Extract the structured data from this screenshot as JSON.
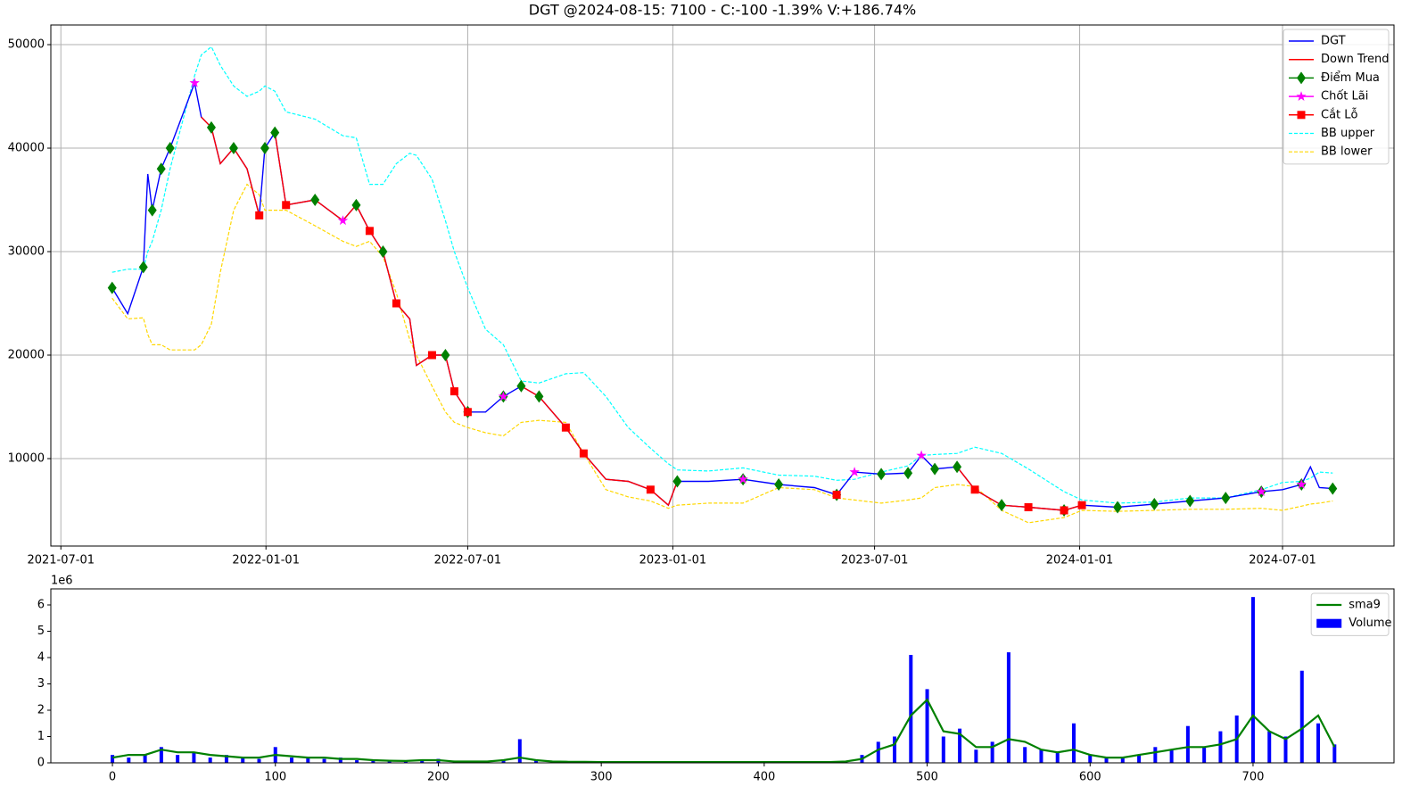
{
  "chart_data": [
    {
      "type": "line",
      "title": "DGT @2024-08-15: 7100 - C:-100 -1.39% V:+186.74%",
      "x": [
        "2021-08-16",
        "2021-08-30",
        "2021-09-13",
        "2021-09-17",
        "2021-09-21",
        "2021-09-29",
        "2021-10-07",
        "2021-10-29",
        "2021-11-04",
        "2021-11-13",
        "2021-11-21",
        "2021-12-03",
        "2021-12-15",
        "2021-12-26",
        "2021-12-31",
        "2022-01-09",
        "2022-01-19",
        "2022-02-14",
        "2022-03-11",
        "2022-03-23",
        "2022-04-04",
        "2022-04-16",
        "2022-04-28",
        "2022-05-10",
        "2022-05-16",
        "2022-05-30",
        "2022-06-11",
        "2022-06-19",
        "2022-07-01",
        "2022-07-17",
        "2022-08-02",
        "2022-08-18",
        "2022-09-03",
        "2022-09-27",
        "2022-10-13",
        "2022-11-02",
        "2022-11-22",
        "2022-12-12",
        "2022-12-28",
        "2023-01-05",
        "2023-02-02",
        "2023-03-05",
        "2023-04-06",
        "2023-05-08",
        "2023-05-28",
        "2023-06-13",
        "2023-07-07",
        "2023-07-31",
        "2023-08-12",
        "2023-08-24",
        "2023-09-13",
        "2023-09-29",
        "2023-10-23",
        "2023-11-16",
        "2023-12-18",
        "2024-01-03",
        "2024-02-04",
        "2024-03-08",
        "2024-04-09",
        "2024-05-11",
        "2024-06-12",
        "2024-07-01",
        "2024-07-18",
        "2024-07-26",
        "2024-08-03",
        "2024-08-15"
      ],
      "series": [
        {
          "name": "DGT",
          "color": "#0000ff",
          "kind": "line",
          "values": [
            26500,
            24000,
            28500,
            37500,
            34000,
            38000,
            40000,
            46300,
            43000,
            42000,
            38500,
            40000,
            38000,
            33500,
            40000,
            41500,
            34500,
            35000,
            33000,
            34500,
            32000,
            30000,
            25000,
            23500,
            19000,
            20000,
            20000,
            16500,
            14500,
            14500,
            16000,
            17000,
            16000,
            13000,
            10500,
            8000,
            7800,
            7000,
            5500,
            7800,
            7800,
            8000,
            7500,
            7200,
            6500,
            8700,
            8500,
            8600,
            10300,
            9000,
            9200,
            7000,
            5500,
            5300,
            5000,
            5500,
            5300,
            5600,
            5900,
            6200,
            6800,
            7000,
            7500,
            9200,
            7200,
            7100
          ]
        },
        {
          "name": "Down Trend",
          "color": "#ff0000",
          "kind": "line",
          "values": [
            null,
            null,
            null,
            null,
            null,
            null,
            null,
            null,
            43000,
            42000,
            38500,
            40000,
            38000,
            33500,
            null,
            41500,
            34500,
            35000,
            33000,
            34500,
            32000,
            30000,
            25000,
            23500,
            19000,
            20000,
            20000,
            16500,
            14500,
            null,
            null,
            17000,
            16000,
            13000,
            10500,
            8000,
            7800,
            7000,
            5500,
            7800,
            null,
            null,
            null,
            null,
            null,
            null,
            null,
            null,
            null,
            null,
            9200,
            7000,
            5500,
            5300,
            5000,
            5500,
            null,
            null,
            null,
            null,
            null,
            null,
            null,
            null,
            null,
            null
          ]
        },
        {
          "name": "Điểm Mua",
          "color": "#008000",
          "kind": "diamond",
          "values": [
            26500,
            null,
            28500,
            null,
            34000,
            38000,
            40000,
            null,
            null,
            42000,
            null,
            40000,
            null,
            null,
            40000,
            41500,
            null,
            35000,
            null,
            34500,
            null,
            30000,
            null,
            null,
            null,
            null,
            20000,
            null,
            14500,
            null,
            16000,
            17000,
            16000,
            null,
            null,
            null,
            null,
            null,
            null,
            7800,
            null,
            8000,
            7500,
            null,
            6500,
            null,
            8500,
            8600,
            null,
            9000,
            9200,
            null,
            5500,
            null,
            5000,
            null,
            5300,
            5600,
            5900,
            6200,
            6800,
            null,
            7500,
            null,
            null,
            7100
          ]
        },
        {
          "name": "Chốt Lãi",
          "color": "#ff00ff",
          "kind": "star",
          "values": [
            null,
            null,
            null,
            null,
            null,
            null,
            null,
            46300,
            null,
            null,
            null,
            null,
            null,
            null,
            null,
            null,
            null,
            null,
            33000,
            null,
            null,
            null,
            null,
            null,
            null,
            null,
            null,
            null,
            null,
            null,
            16000,
            null,
            null,
            null,
            null,
            null,
            null,
            null,
            null,
            null,
            null,
            8000,
            null,
            null,
            null,
            8700,
            null,
            null,
            10300,
            null,
            null,
            null,
            null,
            null,
            null,
            null,
            null,
            null,
            null,
            null,
            6800,
            null,
            7500,
            null,
            null,
            null
          ]
        },
        {
          "name": "Cắt Lỗ",
          "color": "#ff0000",
          "kind": "square",
          "values": [
            null,
            null,
            null,
            null,
            null,
            null,
            null,
            null,
            null,
            null,
            null,
            null,
            null,
            33500,
            null,
            null,
            34500,
            null,
            null,
            null,
            32000,
            null,
            25000,
            null,
            null,
            20000,
            null,
            16500,
            14500,
            null,
            null,
            null,
            null,
            13000,
            10500,
            null,
            null,
            7000,
            null,
            null,
            null,
            null,
            null,
            null,
            6500,
            null,
            null,
            null,
            null,
            null,
            null,
            7000,
            null,
            5300,
            5000,
            5500,
            null,
            null,
            null,
            null,
            null,
            null,
            null,
            null,
            null,
            null
          ]
        },
        {
          "name": "BB upper",
          "color": "#00ffff",
          "kind": "dashed",
          "values": [
            28000,
            28300,
            28300,
            30000,
            31000,
            34000,
            38000,
            47000,
            49000,
            49800,
            48000,
            46000,
            45000,
            45500,
            46000,
            45500,
            43500,
            42800,
            41200,
            41000,
            36500,
            36500,
            38500,
            39500,
            39300,
            37000,
            33000,
            30000,
            26500,
            22500,
            21000,
            17500,
            17300,
            18200,
            18300,
            16000,
            13000,
            11000,
            9500,
            8900,
            8800,
            9100,
            8400,
            8300,
            7900,
            8000,
            8700,
            9300,
            10300,
            10400,
            10500,
            11100,
            10500,
            9000,
            6800,
            6000,
            5700,
            5800,
            6200,
            6200,
            7000,
            7700,
            7800,
            8100,
            8700,
            8600
          ]
        },
        {
          "name": "BB lower",
          "color": "#ffd700",
          "kind": "dashed",
          "values": [
            25500,
            23500,
            23600,
            22000,
            21000,
            21000,
            20500,
            20500,
            21000,
            23000,
            28000,
            34000,
            36500,
            35500,
            34000,
            34000,
            34000,
            32500,
            31000,
            30500,
            31000,
            29500,
            26000,
            21500,
            20000,
            17000,
            14500,
            13500,
            13000,
            12500,
            12200,
            13500,
            13700,
            13500,
            10500,
            7000,
            6300,
            5900,
            5200,
            5500,
            5700,
            5700,
            7200,
            7000,
            6200,
            6000,
            5700,
            6000,
            6200,
            7200,
            7500,
            7300,
            5000,
            3800,
            4300,
            5000,
            4900,
            5000,
            5100,
            5100,
            5200,
            5000,
            5400,
            5600,
            5700,
            5900
          ]
        }
      ],
      "xlim": [
        "2021-06-22",
        "2024-10-09"
      ],
      "xticks": [
        "2021-07-01",
        "2022-01-01",
        "2022-07-01",
        "2023-01-01",
        "2023-07-01",
        "2024-01-01",
        "2024-07-01"
      ],
      "ylim": [
        1550,
        51900
      ],
      "yticks": [
        10000,
        20000,
        30000,
        40000,
        50000
      ],
      "grid": true,
      "legend": "upper right"
    },
    {
      "type": "bar",
      "offset_label": "1e6",
      "x": [
        0,
        10,
        20,
        30,
        40,
        50,
        60,
        70,
        80,
        90,
        100,
        110,
        120,
        130,
        140,
        150,
        160,
        170,
        180,
        190,
        200,
        210,
        220,
        230,
        240,
        250,
        260,
        270,
        280,
        290,
        300,
        310,
        320,
        330,
        340,
        350,
        360,
        370,
        380,
        390,
        400,
        410,
        420,
        430,
        440,
        450,
        460,
        470,
        480,
        490,
        500,
        510,
        520,
        530,
        540,
        550,
        560,
        570,
        580,
        590,
        600,
        610,
        620,
        630,
        640,
        650,
        660,
        670,
        680,
        690,
        700,
        710,
        720,
        730,
        740,
        750
      ],
      "series": [
        {
          "name": "sma9",
          "color": "#008000",
          "kind": "line",
          "values": [
            0.2,
            0.3,
            0.3,
            0.5,
            0.4,
            0.4,
            0.3,
            0.25,
            0.2,
            0.2,
            0.3,
            0.25,
            0.2,
            0.2,
            0.15,
            0.15,
            0.1,
            0.08,
            0.07,
            0.1,
            0.1,
            0.05,
            0.05,
            0.05,
            0.1,
            0.2,
            0.1,
            0.05,
            0.04,
            0.04,
            0.03,
            0.03,
            0.03,
            0.03,
            0.03,
            0.03,
            0.03,
            0.03,
            0.03,
            0.03,
            0.03,
            0.03,
            0.03,
            0.03,
            0.03,
            0.05,
            0.15,
            0.5,
            0.7,
            1.8,
            2.4,
            1.2,
            1.1,
            0.6,
            0.6,
            0.9,
            0.8,
            0.5,
            0.4,
            0.5,
            0.3,
            0.2,
            0.2,
            0.3,
            0.4,
            0.5,
            0.6,
            0.6,
            0.7,
            0.9,
            1.8,
            1.2,
            0.9,
            1.3,
            1.8,
            0.6
          ]
        },
        {
          "name": "Volume",
          "color": "#0000ff",
          "kind": "bar",
          "values": [
            0.3,
            0.2,
            0.3,
            0.6,
            0.3,
            0.4,
            0.2,
            0.3,
            0.2,
            0.15,
            0.6,
            0.2,
            0.2,
            0.15,
            0.2,
            0.1,
            0.1,
            0.08,
            0.05,
            0.1,
            0.15,
            0.05,
            0.05,
            0.05,
            0.1,
            0.9,
            0.1,
            0.05,
            0.05,
            0.05,
            0.05,
            0.05,
            0.03,
            0.03,
            0.05,
            0.05,
            0.05,
            0.05,
            0.05,
            0.05,
            0.03,
            0.03,
            0.03,
            0.03,
            0.03,
            0.05,
            0.3,
            0.8,
            1.0,
            4.1,
            2.8,
            1.0,
            1.3,
            0.5,
            0.8,
            4.2,
            0.6,
            0.5,
            0.4,
            1.5,
            0.3,
            0.2,
            0.2,
            0.3,
            0.6,
            0.5,
            1.4,
            0.6,
            1.2,
            1.8,
            6.3,
            1.2,
            1.0,
            3.5,
            1.5,
            0.7
          ]
        }
      ],
      "xlim": [
        -37.8,
        786.5
      ],
      "xticks": [
        0,
        100,
        200,
        300,
        400,
        500,
        600,
        700
      ],
      "ylim": [
        0,
        6.61
      ],
      "yticks": [
        0,
        1,
        2,
        3,
        4,
        5,
        6
      ],
      "grid": false,
      "legend": "upper right"
    }
  ]
}
